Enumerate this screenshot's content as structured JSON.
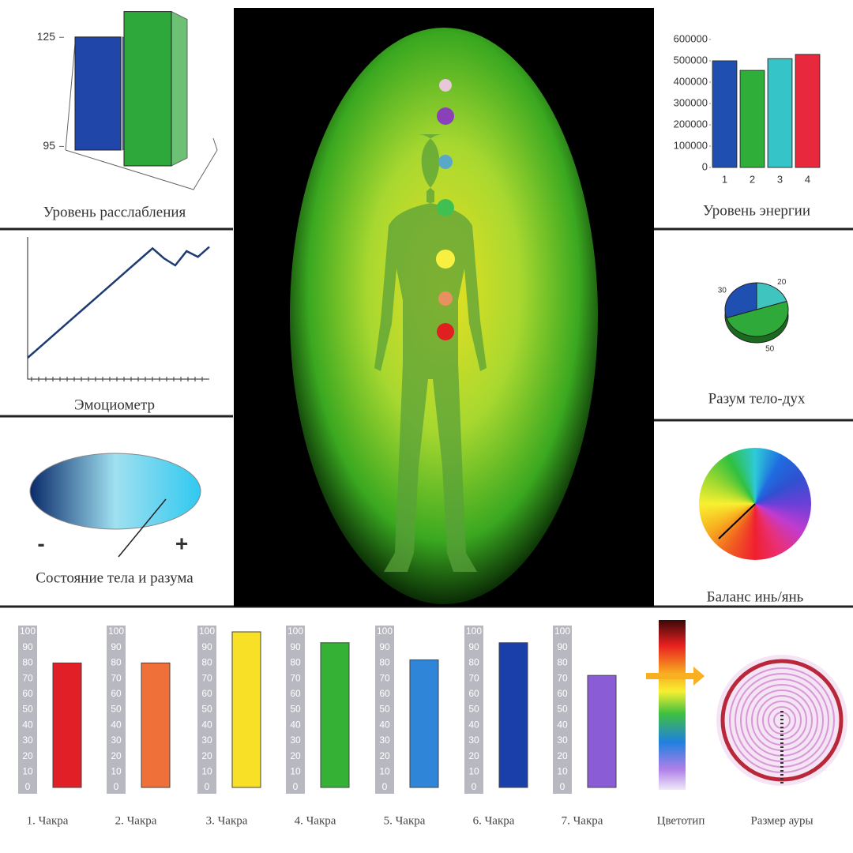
{
  "chart_data": [
    {
      "type": "bar3d",
      "title": "Уровень расслабления",
      "categories": [
        null,
        null
      ],
      "values": [
        124,
        131
      ],
      "colors": [
        "#1f46a8",
        "#2ea83a"
      ],
      "ylim": [
        94,
        132
      ],
      "yticks": [
        95,
        125
      ]
    },
    {
      "type": "bar",
      "title": "Уровень энергии",
      "categories": [
        "1",
        "2",
        "3",
        "4"
      ],
      "values": [
        500000,
        455000,
        510000,
        530000
      ],
      "colors": [
        "#1f4fb0",
        "#2fae3a",
        "#35c4c8",
        "#e8283c"
      ],
      "ylim": [
        0,
        600000
      ],
      "yticks": [
        0,
        100000,
        200000,
        300000,
        400000,
        500000,
        600000
      ]
    },
    {
      "type": "line",
      "title": "Эмоциометр",
      "values": [
        15,
        22,
        29,
        36,
        43,
        50,
        57,
        64,
        71,
        78,
        85,
        92,
        85,
        80,
        90,
        86,
        93
      ],
      "color": "#1d3a73",
      "ylim": [
        0,
        100
      ]
    },
    {
      "type": "pie",
      "title": "Разум тело-дух",
      "values": [
        30,
        20,
        50
      ],
      "colors": [
        "#1f4fb0",
        "#40c4c0",
        "#2faa3a"
      ]
    },
    {
      "type": "bar",
      "categories": [
        "1. Чакра",
        "2. Чакра",
        "3. Чакра",
        "4. Чакра",
        "5. Чакра",
        "6. Чакра",
        "7. Чакра"
      ],
      "values": [
        80,
        80,
        100,
        93,
        82,
        93,
        72
      ],
      "colors": [
        "#e01f26",
        "#f0703a",
        "#f7e026",
        "#35b236",
        "#2f86d8",
        "#1a3faa",
        "#8a5cd6"
      ],
      "ylim": [
        0,
        100
      ],
      "yticks": [
        0,
        10,
        20,
        30,
        40,
        50,
        60,
        70,
        80,
        90,
        100
      ]
    }
  ],
  "panels": {
    "state": {
      "title": "Состояние тела и разума",
      "minus": "-",
      "plus": "+"
    },
    "balance": {
      "title": "Баланс инь/янь"
    },
    "color_type": {
      "title": "Цветотип"
    },
    "aura_size": {
      "title": "Размер ауры"
    }
  }
}
